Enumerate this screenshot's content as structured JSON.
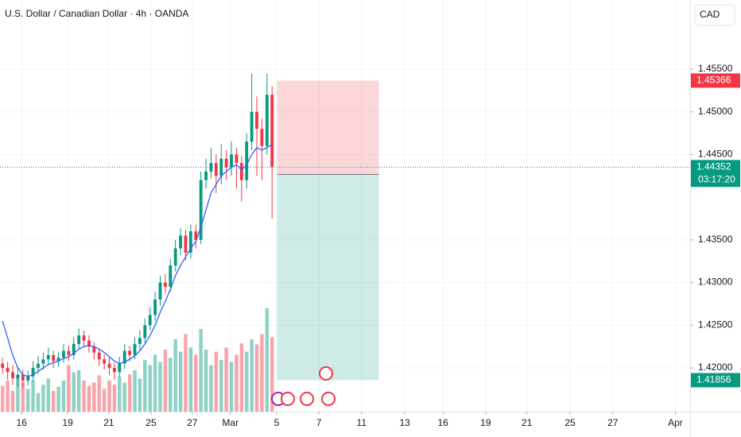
{
  "chart_data": {
    "type": "candlestick",
    "title": "U.S. Dollar / Canadian Dollar · 4h · OANDA",
    "currency": "CAD",
    "x": [
      0,
      1,
      2,
      3,
      4,
      5,
      6,
      7,
      8,
      9,
      10,
      11,
      12,
      13,
      14,
      15,
      16,
      17,
      18,
      19,
      20,
      21,
      22,
      23,
      24,
      25,
      26,
      27,
      28,
      29,
      30,
      31,
      32,
      33,
      34,
      35,
      36,
      37,
      38,
      39,
      40,
      41,
      42,
      43,
      44,
      45,
      46,
      47,
      48,
      49,
      50,
      51,
      52,
      53
    ],
    "open": [
      1.4205,
      1.42,
      1.4195,
      1.4188,
      1.4192,
      1.4185,
      1.419,
      1.42,
      1.4205,
      1.421,
      1.4215,
      1.4208,
      1.4212,
      1.422,
      1.4215,
      1.4228,
      1.4238,
      1.4232,
      1.4225,
      1.4218,
      1.421,
      1.4205,
      1.42,
      1.4195,
      1.4205,
      1.422,
      1.4215,
      1.4228,
      1.4235,
      1.425,
      1.4262,
      1.428,
      1.43,
      1.4295,
      1.432,
      1.434,
      1.4355,
      1.4335,
      1.436,
      1.435,
      1.442,
      1.443,
      1.444,
      1.4425,
      1.4445,
      1.4435,
      1.445,
      1.444,
      1.442,
      1.4465,
      1.45,
      1.448,
      1.446,
      1.452
    ],
    "high": [
      1.4212,
      1.4207,
      1.4203,
      1.42,
      1.4198,
      1.4197,
      1.4208,
      1.4214,
      1.4218,
      1.4224,
      1.422,
      1.4219,
      1.4228,
      1.4226,
      1.4236,
      1.4246,
      1.4244,
      1.4238,
      1.423,
      1.4222,
      1.4216,
      1.4212,
      1.4206,
      1.4213,
      1.4228,
      1.4226,
      1.4236,
      1.4244,
      1.4258,
      1.4271,
      1.4289,
      1.4308,
      1.431,
      1.4328,
      1.435,
      1.4364,
      1.4362,
      1.4368,
      1.4368,
      1.443,
      1.4445,
      1.4458,
      1.445,
      1.4462,
      1.4455,
      1.4465,
      1.4458,
      1.4448,
      1.4475,
      1.4545,
      1.4518,
      1.4492,
      1.4545,
      1.453
    ],
    "low": [
      1.4193,
      1.4186,
      1.418,
      1.4178,
      1.4176,
      1.4179,
      1.4184,
      1.4193,
      1.4198,
      1.4203,
      1.42,
      1.4201,
      1.4206,
      1.4208,
      1.421,
      1.4222,
      1.4225,
      1.4218,
      1.421,
      1.4202,
      1.4198,
      1.4192,
      1.4186,
      1.4189,
      1.4199,
      1.4208,
      1.421,
      1.4221,
      1.4229,
      1.4244,
      1.4255,
      1.4273,
      1.4287,
      1.4289,
      1.4313,
      1.4332,
      1.4326,
      1.4328,
      1.434,
      1.4345,
      1.441,
      1.4422,
      1.4405,
      1.4415,
      1.442,
      1.4425,
      1.441,
      1.4395,
      1.441,
      1.4455,
      1.4425,
      1.442,
      1.445,
      1.4375
    ],
    "close": [
      1.42,
      1.4195,
      1.4188,
      1.4192,
      1.4185,
      1.419,
      1.42,
      1.4205,
      1.421,
      1.4215,
      1.4208,
      1.4212,
      1.422,
      1.4215,
      1.4228,
      1.4238,
      1.4232,
      1.4225,
      1.4218,
      1.421,
      1.4205,
      1.42,
      1.4195,
      1.4205,
      1.422,
      1.4215,
      1.4228,
      1.4235,
      1.425,
      1.4262,
      1.428,
      1.43,
      1.4295,
      1.432,
      1.434,
      1.4355,
      1.4335,
      1.436,
      1.435,
      1.442,
      1.443,
      1.444,
      1.4425,
      1.4445,
      1.4435,
      1.445,
      1.444,
      1.442,
      1.4465,
      1.45,
      1.448,
      1.446,
      1.452,
      1.44352
    ],
    "volume": [
      25,
      30,
      20,
      35,
      28,
      22,
      30,
      18,
      26,
      32,
      20,
      24,
      30,
      45,
      38,
      40,
      30,
      25,
      28,
      35,
      22,
      30,
      26,
      34,
      28,
      36,
      40,
      32,
      50,
      45,
      55,
      48,
      60,
      52,
      70,
      58,
      75,
      62,
      55,
      80,
      60,
      45,
      58,
      50,
      62,
      48,
      55,
      66,
      58,
      70,
      65,
      75,
      100,
      72
    ],
    "up_color": "#089981",
    "down_color": "#f23645",
    "ma": {
      "color": "#2962ff",
      "values": [
        1.4255,
        1.4235,
        1.4215,
        1.42,
        1.4192,
        1.419,
        1.4192,
        1.4196,
        1.42,
        1.4204,
        1.4206,
        1.4208,
        1.4211,
        1.4213,
        1.4217,
        1.4222,
        1.4225,
        1.4226,
        1.4225,
        1.4222,
        1.4218,
        1.4213,
        1.4208,
        1.4205,
        1.4207,
        1.421,
        1.4214,
        1.422,
        1.4228,
        1.4238,
        1.425,
        1.4265,
        1.4278,
        1.4292,
        1.4308,
        1.432,
        1.433,
        1.434,
        1.4348,
        1.4365,
        1.4385,
        1.4405,
        1.4415,
        1.4425,
        1.443,
        1.4435,
        1.4438,
        1.4432,
        1.4438,
        1.445,
        1.4458,
        1.4455,
        1.4458,
        1.4462
      ]
    },
    "position": {
      "x": [
        54,
        74
      ],
      "stop": 1.45366,
      "entry": 1.44267,
      "target": 1.41856
    },
    "last_price": 1.44352,
    "countdown": "03:17:20",
    "xlim": [
      -0.5,
      135.2
    ],
    "ylim": [
      1.41488,
      1.4631
    ],
    "xticks": [
      {
        "value": 3.75,
        "label": "16"
      },
      {
        "value": 12.8,
        "label": "19"
      },
      {
        "value": 20.9,
        "label": "21"
      },
      {
        "value": 29.2,
        "label": "25"
      },
      {
        "value": 37.3,
        "label": "27"
      },
      {
        "value": 44.8,
        "label": "Mar"
      },
      {
        "value": 53.9,
        "label": "5"
      },
      {
        "value": 62.2,
        "label": "7"
      },
      {
        "value": 70.6,
        "label": "11"
      },
      {
        "value": 79.1,
        "label": "13"
      },
      {
        "value": 86.6,
        "label": "16"
      },
      {
        "value": 95,
        "label": "19"
      },
      {
        "value": 103.1,
        "label": "21"
      },
      {
        "value": 111.6,
        "label": "25"
      },
      {
        "value": 120,
        "label": "27"
      },
      {
        "value": 132.3,
        "label": "Apr"
      }
    ],
    "yticks": [
      {
        "value": 1.455,
        "label": "1.45500"
      },
      {
        "value": 1.45,
        "label": "1.45000"
      },
      {
        "value": 1.445,
        "label": "1.44500"
      },
      {
        "value": 1.435,
        "label": "1.43500"
      },
      {
        "value": 1.43,
        "label": "1.43000"
      },
      {
        "value": 1.425,
        "label": "1.42500"
      },
      {
        "value": 1.42,
        "label": "1.42000"
      }
    ],
    "grid": true
  }
}
